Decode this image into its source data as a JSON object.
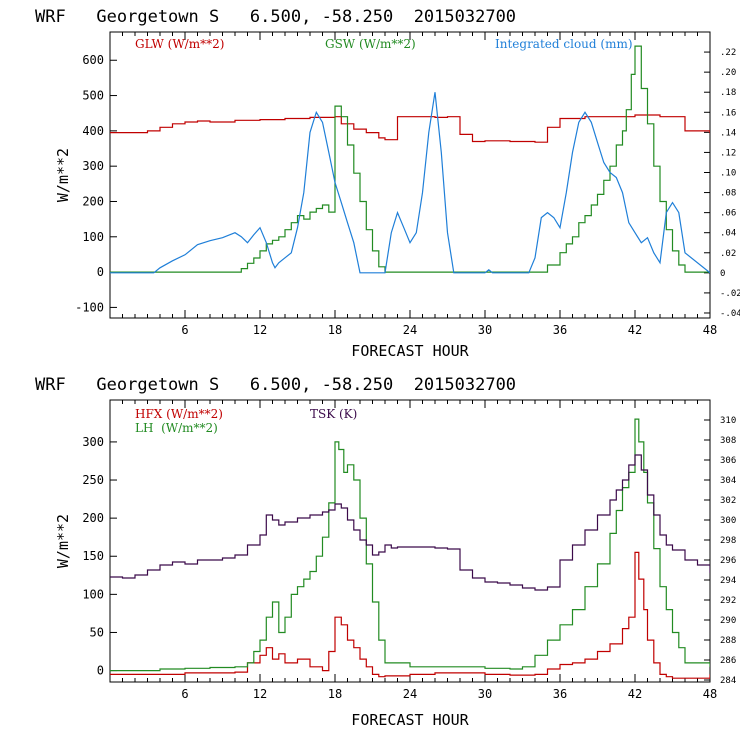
{
  "chart_data": [
    {
      "type": "line",
      "title": "WRF   Georgetown S   6.500, -58.250  2015032700",
      "xlabel": "FORECAST HOUR",
      "ylabel": "W/m**2",
      "xlim": [
        0,
        48
      ],
      "xticks": [
        "6",
        "12",
        "18",
        "24",
        "30",
        "36",
        "42",
        "48"
      ],
      "ylim": [
        -130,
        680
      ],
      "yticks": [
        -100,
        0,
        100,
        200,
        300,
        400,
        500,
        600
      ],
      "ytick_labels": [
        "-100",
        "0",
        "100",
        "200",
        "300",
        "400",
        "500",
        "600"
      ],
      "y2lim": [
        -0.045,
        0.24
      ],
      "y2ticks": [
        -0.04,
        -0.02,
        0.0,
        0.02,
        0.04,
        0.06,
        0.08,
        0.1,
        0.12,
        0.14,
        0.16,
        0.18,
        0.2,
        0.22
      ],
      "y2tick_labels": [
        "-.04",
        "-.02",
        "0",
        ".02",
        ".04",
        ".06",
        ".08",
        ".10",
        ".12",
        ".14",
        ".16",
        ".18",
        ".20",
        ".22"
      ],
      "legend": [
        "GLW (W/m**2)",
        "GSW (W/m**2)",
        "Integrated cloud (mm)"
      ],
      "series": [
        {
          "name": "GLW (W/m**2)",
          "color": "#c00000",
          "axis": "left",
          "step": true,
          "x": [
            0,
            2,
            3,
            4,
            5,
            6,
            7,
            8,
            10,
            12,
            14,
            16,
            18,
            18.5,
            19.5,
            20.5,
            21.5,
            22,
            23,
            24,
            25,
            26,
            27,
            28,
            29,
            30,
            32,
            34,
            35,
            36,
            38,
            40,
            42,
            43,
            44,
            46,
            48
          ],
          "y": [
            395,
            395,
            400,
            410,
            420,
            425,
            428,
            425,
            430,
            432,
            435,
            438,
            440,
            420,
            405,
            395,
            380,
            375,
            440,
            440,
            440,
            438,
            440,
            390,
            370,
            372,
            370,
            368,
            410,
            435,
            440,
            440,
            445,
            445,
            440,
            400,
            393
          ]
        },
        {
          "name": "GSW (W/m**2)",
          "color": "#228B22",
          "axis": "left",
          "step": true,
          "x": [
            0,
            10,
            10.5,
            11,
            11.5,
            12,
            12.5,
            13,
            13.5,
            14,
            14.5,
            15,
            15.5,
            16,
            16.5,
            17,
            17.5,
            18,
            18.5,
            19,
            19.5,
            20,
            20.5,
            21,
            21.5,
            22,
            34,
            35,
            36,
            36.5,
            37,
            37.5,
            38,
            38.5,
            39,
            39.5,
            40,
            40.5,
            41,
            41.3,
            41.7,
            42,
            42.5,
            43,
            43.5,
            44,
            44.5,
            45,
            45.5,
            46,
            48
          ],
          "y": [
            0,
            0,
            10,
            25,
            40,
            60,
            80,
            90,
            100,
            120,
            140,
            160,
            150,
            170,
            180,
            190,
            170,
            470,
            440,
            360,
            280,
            200,
            120,
            60,
            15,
            0,
            0,
            20,
            55,
            80,
            100,
            140,
            160,
            190,
            220,
            260,
            300,
            360,
            400,
            460,
            560,
            640,
            520,
            420,
            300,
            200,
            120,
            60,
            20,
            0,
            0
          ]
        },
        {
          "name": "Integrated cloud (mm)",
          "color": "#1f7fd8",
          "axis": "right",
          "step": false,
          "x": [
            0,
            3.5,
            4,
            5,
            6,
            7,
            8,
            9,
            10,
            10.5,
            11,
            11.5,
            12,
            12.5,
            13,
            13.2,
            13.5,
            14,
            14.5,
            15,
            15.5,
            16,
            16.5,
            17,
            17.5,
            18,
            18.5,
            19,
            19.5,
            20,
            20.5,
            21,
            21.5,
            22,
            22.5,
            23,
            23.5,
            24,
            24.5,
            25,
            25.5,
            26,
            26.5,
            27,
            27.5,
            28,
            29,
            30,
            30.3,
            30.6,
            33.5,
            34,
            34.5,
            35,
            35.5,
            36,
            36.5,
            37,
            37.5,
            38,
            38.5,
            39,
            39.5,
            40,
            40.5,
            41,
            41.5,
            42,
            42.5,
            43,
            43.5,
            44,
            44.5,
            45,
            45.5,
            46,
            48
          ],
          "y": [
            0,
            0,
            0.005,
            0.012,
            0.018,
            0.028,
            0.032,
            0.035,
            0.04,
            0.036,
            0.03,
            0.038,
            0.045,
            0.03,
            0.01,
            0.005,
            0.01,
            0.015,
            0.02,
            0.045,
            0.08,
            0.14,
            0.16,
            0.15,
            0.12,
            0.09,
            0.07,
            0.05,
            0.03,
            0.0,
            0.0,
            0.0,
            0.0,
            0.0,
            0.04,
            0.06,
            0.045,
            0.03,
            0.04,
            0.08,
            0.14,
            0.18,
            0.12,
            0.04,
            0.0,
            0.0,
            0.0,
            0.0,
            0.003,
            0.0,
            0.0,
            0.015,
            0.055,
            0.06,
            0.055,
            0.045,
            0.08,
            0.12,
            0.15,
            0.16,
            0.15,
            0.13,
            0.11,
            0.1,
            0.095,
            0.08,
            0.05,
            0.04,
            0.03,
            0.035,
            0.02,
            0.01,
            0.06,
            0.07,
            0.06,
            0.02,
            0.0
          ]
        }
      ]
    },
    {
      "type": "line",
      "title": "WRF   Georgetown S   6.500, -58.250  2015032700",
      "xlabel": "FORECAST HOUR",
      "ylabel": "W/m**2",
      "xlim": [
        0,
        48
      ],
      "xticks": [
        "6",
        "12",
        "18",
        "24",
        "30",
        "36",
        "42",
        "48"
      ],
      "ylim": [
        -15,
        355
      ],
      "yticks": [
        0,
        50,
        100,
        150,
        200,
        250,
        300
      ],
      "ytick_labels": [
        "0",
        "50",
        "100",
        "150",
        "200",
        "250",
        "300"
      ],
      "y2lim": [
        283.8,
        312
      ],
      "y2ticks": [
        284,
        286,
        288,
        290,
        292,
        294,
        296,
        298,
        300,
        302,
        304,
        306,
        308,
        310
      ],
      "y2tick_labels": [
        "284",
        "286",
        "288",
        "290",
        "292",
        "294",
        "296",
        "298",
        "300",
        "302",
        "304",
        "306",
        "308",
        "310"
      ],
      "legend": [
        "HFX (W/m**2)",
        "LH  (W/m**2)",
        "TSK (K)"
      ],
      "series": [
        {
          "name": "HFX (W/m**2)",
          "color": "#c00000",
          "axis": "left",
          "step": true,
          "x": [
            0,
            2,
            6,
            10,
            11,
            12,
            12.5,
            13,
            13.5,
            14,
            15,
            16,
            17,
            17.5,
            18,
            18.5,
            19,
            19.5,
            20,
            20.5,
            21,
            21.5,
            22,
            24,
            26,
            28,
            30,
            32,
            34,
            35,
            36,
            37,
            38,
            39,
            40,
            41,
            41.5,
            42,
            42.3,
            42.7,
            43,
            43.5,
            44,
            44.5,
            45,
            46,
            48
          ],
          "y": [
            -5,
            -5,
            -3,
            -2,
            10,
            20,
            30,
            15,
            22,
            10,
            15,
            5,
            0,
            25,
            70,
            60,
            40,
            30,
            15,
            5,
            -5,
            -8,
            -7,
            -5,
            -3,
            -3,
            -5,
            -6,
            -5,
            2,
            8,
            10,
            15,
            25,
            35,
            55,
            70,
            155,
            120,
            80,
            40,
            10,
            -5,
            -8,
            -10,
            -10,
            -5
          ]
        },
        {
          "name": "LH  (W/m**2)",
          "color": "#228B22",
          "axis": "left",
          "step": true,
          "x": [
            0,
            2,
            4,
            6,
            8,
            10,
            11,
            11.5,
            12,
            12.5,
            13,
            13.5,
            14,
            14.5,
            15,
            15.5,
            16,
            16.5,
            17,
            17.5,
            18,
            18.3,
            18.7,
            19,
            19.5,
            20,
            20.5,
            21,
            21.5,
            22,
            24,
            28,
            30,
            32,
            33,
            34,
            35,
            36,
            37,
            38,
            39,
            40,
            40.5,
            41,
            41.5,
            42,
            42.3,
            42.7,
            43,
            43.5,
            44,
            44.5,
            45,
            45.5,
            46,
            48
          ],
          "y": [
            0,
            0,
            2,
            3,
            4,
            5,
            10,
            25,
            40,
            70,
            90,
            50,
            70,
            100,
            110,
            120,
            130,
            150,
            175,
            220,
            300,
            290,
            260,
            270,
            250,
            200,
            140,
            90,
            40,
            10,
            5,
            5,
            3,
            2,
            5,
            20,
            40,
            60,
            80,
            110,
            140,
            180,
            210,
            240,
            260,
            330,
            300,
            260,
            220,
            160,
            110,
            80,
            50,
            30,
            10,
            5
          ]
        },
        {
          "name": "TSK (K)",
          "color": "#3b0a4a",
          "axis": "right",
          "step": true,
          "x": [
            0,
            1,
            2,
            3,
            4,
            5,
            6,
            7,
            8,
            9,
            10,
            11,
            12,
            12.5,
            13,
            13.5,
            14,
            15,
            16,
            17,
            17.5,
            18,
            18.5,
            19,
            19.5,
            20,
            20.5,
            21,
            21.5,
            22,
            22.5,
            23,
            25,
            26,
            27,
            28,
            29,
            30,
            31,
            32,
            33,
            34,
            35,
            36,
            37,
            38,
            39,
            40,
            40.5,
            41,
            41.5,
            42,
            42.5,
            43,
            43.5,
            44,
            44.5,
            45,
            46,
            47,
            48
          ],
          "y": [
            294.3,
            294.2,
            294.5,
            295.0,
            295.5,
            295.8,
            295.6,
            296.0,
            296.0,
            296.2,
            296.5,
            297.5,
            298.5,
            300.5,
            300.0,
            299.5,
            299.8,
            300.2,
            300.5,
            300.8,
            301.0,
            301.6,
            301.2,
            300.0,
            299.0,
            298.0,
            297.5,
            296.5,
            296.8,
            297.5,
            297.2,
            297.3,
            297.3,
            297.2,
            297.1,
            295.0,
            294.2,
            293.8,
            293.7,
            293.5,
            293.2,
            293.0,
            293.3,
            296.0,
            297.5,
            299.0,
            300.5,
            302.0,
            303.0,
            304.0,
            305.5,
            306.5,
            305.0,
            302.5,
            300.5,
            298.5,
            297.5,
            297.0,
            296.0,
            295.5,
            294.7
          ]
        }
      ]
    }
  ]
}
